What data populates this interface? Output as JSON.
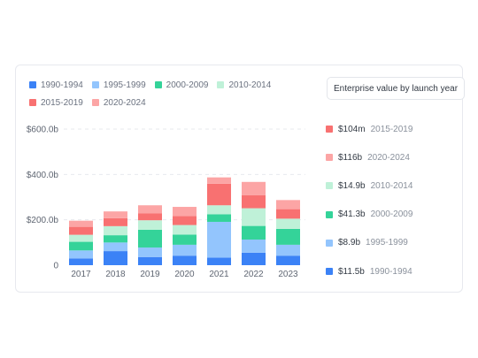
{
  "title_button": "Enterprise value by launch year",
  "legend": [
    {
      "label": "1990-1994",
      "color": "#3b82f6"
    },
    {
      "label": "1995-1999",
      "color": "#93c5fd"
    },
    {
      "label": "2000-2009",
      "color": "#34d399"
    },
    {
      "label": "2010-2014",
      "color": "#bff1d8"
    },
    {
      "label": "2015-2019",
      "color": "#f87171"
    },
    {
      "label": "2020-2024",
      "color": "#fca5a5"
    }
  ],
  "side_summary": [
    {
      "value": "$104m",
      "label": "2015-2019",
      "color": "#f87171"
    },
    {
      "value": "$116b",
      "label": "2020-2024",
      "color": "#fca5a5"
    },
    {
      "value": "$14.9b",
      "label": "2010-2014",
      "color": "#bff1d8"
    },
    {
      "value": "$41.3b",
      "label": "2000-2009",
      "color": "#34d399"
    },
    {
      "value": "$8.9b",
      "label": "1995-1999",
      "color": "#93c5fd"
    },
    {
      "value": "$11.5b",
      "label": "1990-1994",
      "color": "#3b82f6"
    }
  ],
  "chart_data": {
    "type": "bar",
    "stacked": true,
    "categories": [
      "2017",
      "2018",
      "2019",
      "2020",
      "2021",
      "2022",
      "2023"
    ],
    "ylim": [
      0,
      600
    ],
    "yticks": [
      {
        "value": 0,
        "label": "0"
      },
      {
        "value": 200,
        "label": "$200.0b"
      },
      {
        "value": 400,
        "label": "$400.0b"
      },
      {
        "value": 600,
        "label": "$600.0b"
      }
    ],
    "grid": true,
    "series": [
      {
        "name": "1990-1994",
        "color": "#3b82f6",
        "values": [
          30,
          62,
          36,
          42,
          33,
          55,
          42
        ]
      },
      {
        "name": "1995-1999",
        "color": "#93c5fd",
        "values": [
          35,
          38,
          42,
          48,
          158,
          58,
          48
        ]
      },
      {
        "name": "2000-2009",
        "color": "#34d399",
        "values": [
          38,
          32,
          78,
          45,
          33,
          60,
          70
        ]
      },
      {
        "name": "2010-2014",
        "color": "#bff1d8",
        "values": [
          31,
          40,
          42,
          42,
          40,
          78,
          45
        ]
      },
      {
        "name": "2015-2019",
        "color": "#f87171",
        "values": [
          35,
          35,
          30,
          40,
          95,
          58,
          42
        ]
      },
      {
        "name": "2020-2024",
        "color": "#fca5a5",
        "values": [
          27,
          30,
          36,
          40,
          28,
          58,
          40
        ]
      }
    ]
  }
}
